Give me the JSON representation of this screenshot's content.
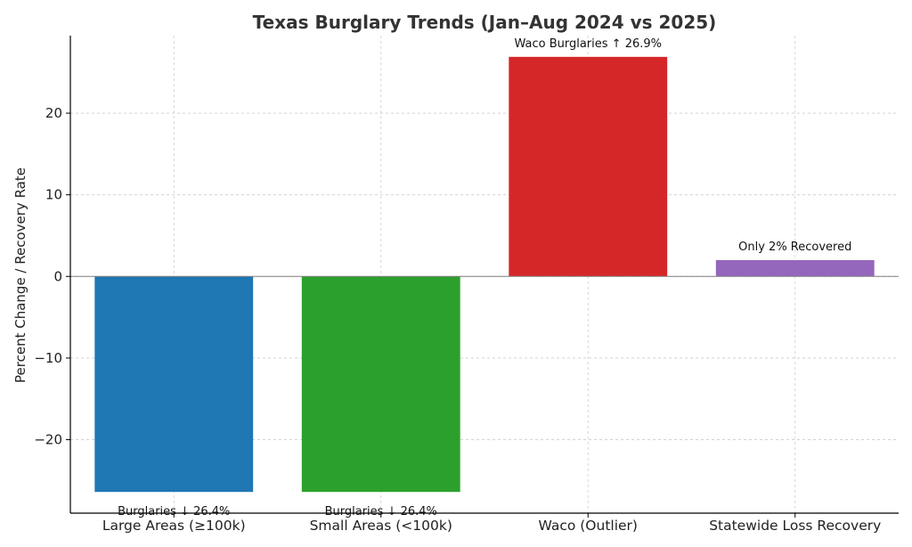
{
  "chart_data": {
    "type": "bar",
    "title": "Texas Burglary Trends (Jan–Aug 2024 vs 2025)",
    "xlabel": "",
    "ylabel": "Percent Change / Recovery Rate",
    "categories": [
      "Large Areas (≥100k)",
      "Small Areas (<100k)",
      "Waco (Outlier)",
      "Statewide Loss Recovery"
    ],
    "values": [
      -26.4,
      -26.4,
      26.9,
      2
    ],
    "colors": [
      "#1f77b4",
      "#2ca02c",
      "#d62728",
      "#9467bd"
    ],
    "annotations": [
      "Burglaries ↓ 26.4%",
      "Burglaries ↓ 26.4%",
      "Waco Burglaries ↑ 26.9%",
      "Only 2% Recovered"
    ],
    "ylim": [
      -29,
      29.5
    ],
    "yticks": [
      20,
      10,
      0,
      -10,
      -20
    ],
    "ytick_labels": [
      "20",
      "10",
      "0",
      "−10",
      "−20"
    ],
    "grid": true,
    "legend": "none"
  }
}
